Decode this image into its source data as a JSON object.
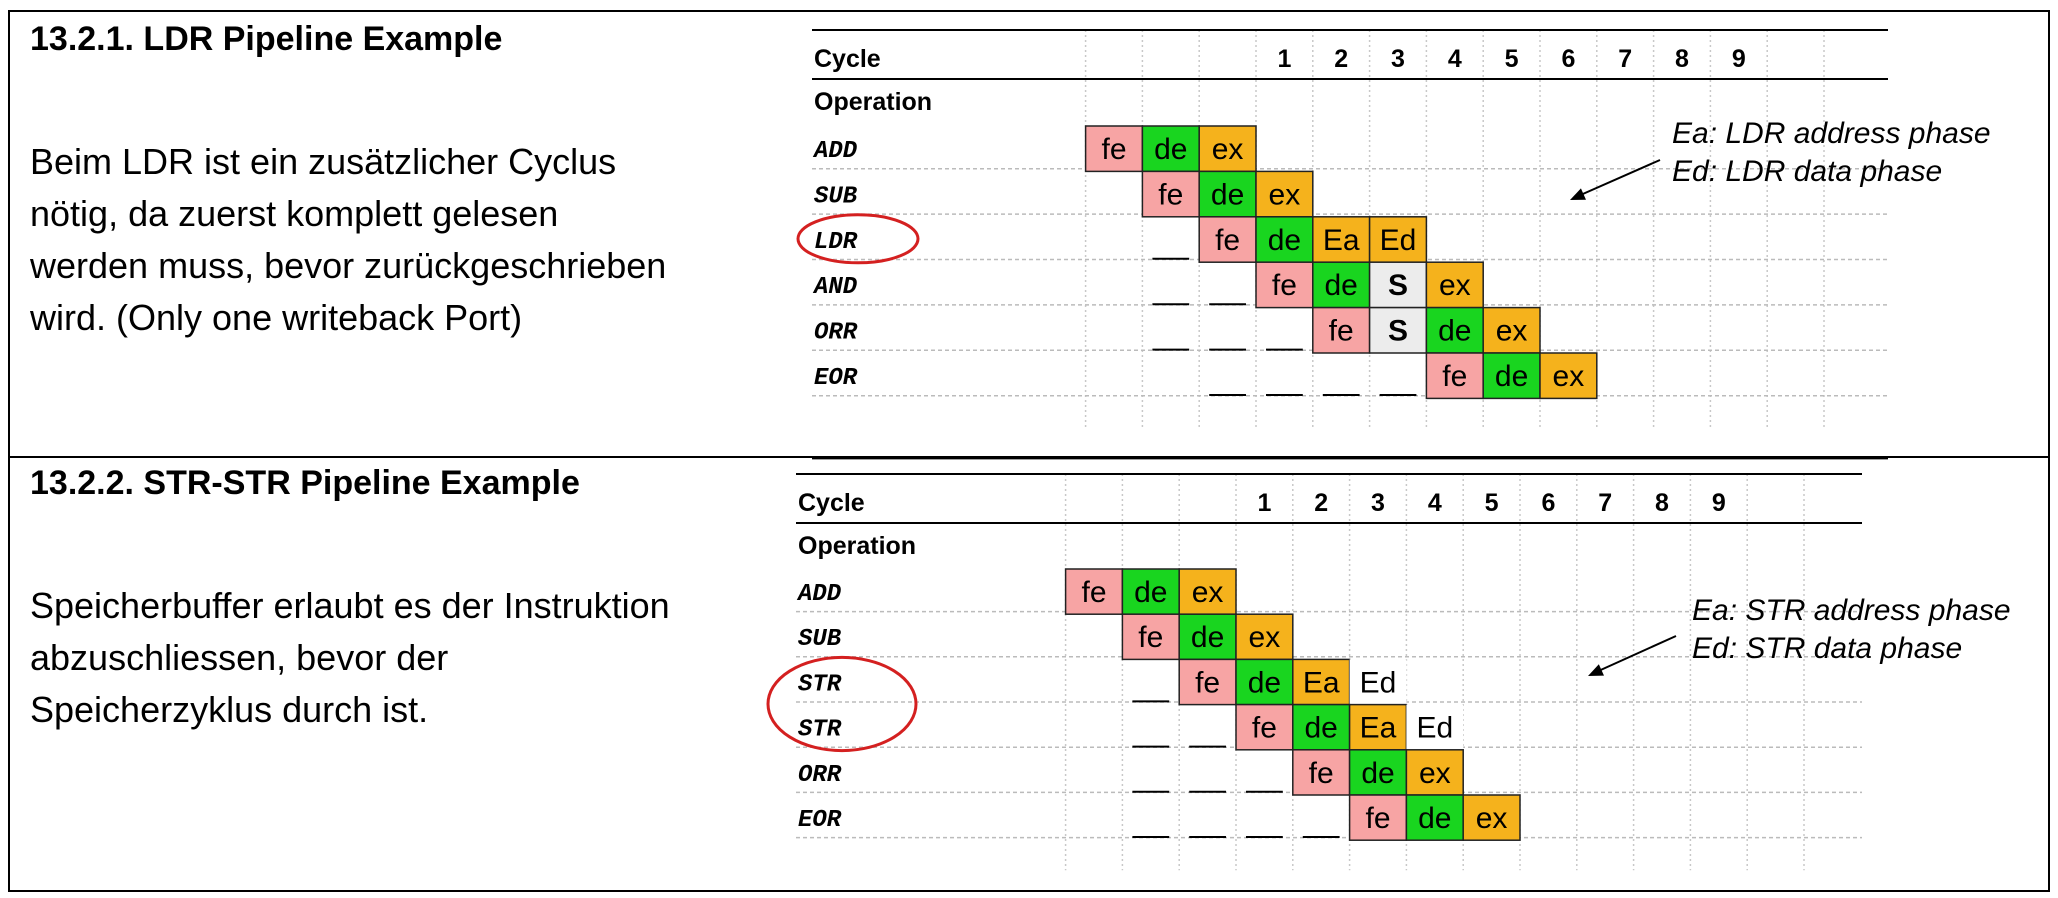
{
  "sections": [
    {
      "title": "13.2.1.  LDR Pipeline Example",
      "description": [
        "Beim LDR ist ein zusätzlicher Cyclus",
        "nötig, da zuerst komplett gelesen",
        "werden muss, bevor zurückgeschrieben",
        "wird. (Only one writeback Port)"
      ],
      "diagram": {
        "header_label": "Cycle",
        "operation_label": "Operation",
        "cycles": [
          "1",
          "2",
          "3",
          "4",
          "5",
          "6",
          "7",
          "8",
          "9"
        ],
        "operations": [
          "ADD",
          "SUB",
          "LDR",
          "AND",
          "ORR",
          "EOR"
        ],
        "highlighted_operations": [
          "LDR"
        ],
        "annotation": [
          "Ea: LDR address phase",
          "Ed: LDR data phase"
        ],
        "rows": [
          {
            "op": "ADD",
            "start": 0,
            "stages": [
              "fe",
              "de",
              "ex"
            ]
          },
          {
            "op": "SUB",
            "start": 1,
            "stages": [
              "fe",
              "de",
              "ex"
            ]
          },
          {
            "op": "LDR",
            "start": 2,
            "stages": [
              "fe",
              "de",
              "Ea",
              "Ed"
            ]
          },
          {
            "op": "AND",
            "start": 3,
            "stages": [
              "fe",
              "de",
              "S",
              "ex"
            ]
          },
          {
            "op": "ORR",
            "start": 4,
            "stages": [
              "fe",
              "S",
              "de",
              "ex"
            ]
          },
          {
            "op": "EOR",
            "start": 6,
            "stages": [
              "fe",
              "de",
              "ex"
            ]
          }
        ]
      }
    },
    {
      "title": "13.2.2.  STR-STR Pipeline Example",
      "description": [
        "Speicherbuffer erlaubt es der Instruktion",
        "abzuschliessen, bevor der",
        "Speicherzyklus durch ist."
      ],
      "diagram": {
        "header_label": "Cycle",
        "operation_label": "Operation",
        "cycles": [
          "1",
          "2",
          "3",
          "4",
          "5",
          "6",
          "7",
          "8",
          "9"
        ],
        "operations": [
          "ADD",
          "SUB",
          "STR",
          "STR",
          "ORR",
          "EOR"
        ],
        "highlighted_operations": [
          "STR",
          "STR"
        ],
        "annotation": [
          "Ea: STR address phase",
          "Ed: STR data phase"
        ],
        "rows": [
          {
            "op": "ADD",
            "start": 0,
            "stages": [
              "fe",
              "de",
              "ex"
            ]
          },
          {
            "op": "SUB",
            "start": 1,
            "stages": [
              "fe",
              "de",
              "ex"
            ]
          },
          {
            "op": "STR",
            "start": 2,
            "stages": [
              "fe",
              "de",
              "Ea",
              "Ed"
            ]
          },
          {
            "op": "STR",
            "start": 3,
            "stages": [
              "fe",
              "de",
              "Ea",
              "Ed"
            ]
          },
          {
            "op": "ORR",
            "start": 4,
            "stages": [
              "fe",
              "de",
              "ex"
            ]
          },
          {
            "op": "EOR",
            "start": 5,
            "stages": [
              "fe",
              "de",
              "ex"
            ]
          }
        ]
      }
    }
  ],
  "stage_colors": {
    "fe": "#f7a4a4",
    "de": "#19d51f",
    "ex": "#f5b21c",
    "Ea": "#f5b21c",
    "Ed_ldr": "#f5b21c",
    "Ed_str": "#ffffff",
    "S": "#ececec"
  },
  "highlight_color": "#d42020"
}
